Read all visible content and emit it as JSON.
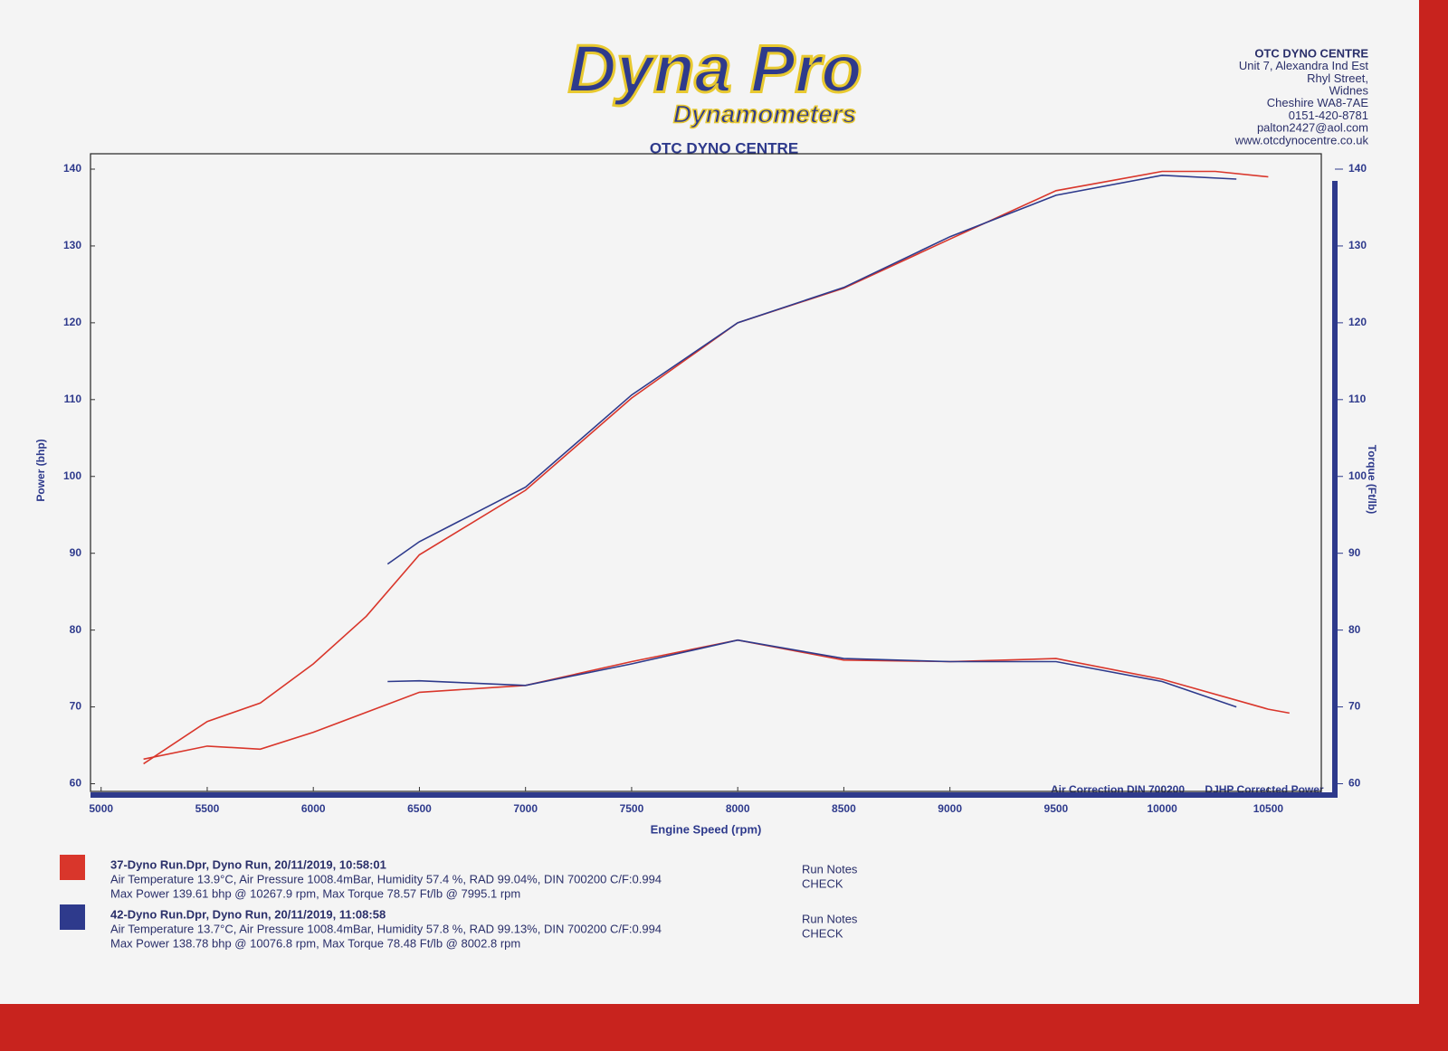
{
  "header": {
    "logo": "Dyna Pro",
    "logo_sub": "Dynamometers",
    "address": [
      "OTC DYNO CENTRE",
      "Unit 7, Alexandra Ind Est",
      "Rhyl Street,",
      "Widnes",
      "Cheshire WA8-7AE",
      "0151-420-8781",
      "palton2427@aol.com",
      "www.otcdynocentre.co.uk"
    ]
  },
  "chart_data": {
    "type": "line",
    "title": "OTC DYNO CENTRE",
    "xlabel": "Engine Speed (rpm)",
    "ylabel": "Power (bhp)",
    "y2label": "Torque (Ft/lb)",
    "xlim": [
      4950,
      10750
    ],
    "xticks": [
      5000,
      5500,
      6000,
      6500,
      7000,
      7500,
      8000,
      8500,
      9000,
      9500,
      10000,
      10500
    ],
    "ylim": [
      59,
      142
    ],
    "yticks": [
      60,
      70,
      80,
      90,
      100,
      110,
      120,
      130,
      140
    ],
    "y2lim": [
      59,
      142
    ],
    "y2ticks": [
      60,
      70,
      80,
      90,
      100,
      110,
      120,
      130,
      140
    ],
    "annotations": [
      "Air Correction DIN 700200",
      "DJHP Corrected Power"
    ],
    "series": [
      {
        "color": "#d9362b",
        "x": [
          5200,
          5500,
          5750,
          6000,
          6250,
          6500,
          7000,
          7500,
          8000,
          8500,
          9000,
          9500,
          10000,
          10250,
          10500
        ],
        "values": [
          62.6,
          68.1,
          70.5,
          75.6,
          81.8,
          89.8,
          98.2,
          110.2,
          120.0,
          124.5,
          130.9,
          137.2,
          139.7,
          139.7,
          139.0
        ]
      },
      {
        "color": "#2e3a8c",
        "x": [
          6350,
          6500,
          7000,
          7500,
          8000,
          8500,
          9000,
          9500,
          10000,
          10350
        ],
        "values": [
          88.6,
          91.5,
          98.6,
          110.6,
          120.0,
          124.6,
          131.2,
          136.6,
          139.2,
          138.7
        ]
      },
      {
        "color": "#d9362b",
        "axis": "y2",
        "x": [
          5200,
          5500,
          5750,
          6000,
          6500,
          7000,
          7500,
          8000,
          8500,
          9000,
          9500,
          10000,
          10500,
          10600
        ],
        "values": [
          63.2,
          64.9,
          64.5,
          66.7,
          71.9,
          72.8,
          75.9,
          78.7,
          76.1,
          75.9,
          76.3,
          73.6,
          69.7,
          69.2
        ]
      },
      {
        "color": "#2e3a8c",
        "axis": "y2",
        "x": [
          6350,
          6500,
          7000,
          7500,
          8000,
          8500,
          9000,
          9500,
          10000,
          10350
        ],
        "values": [
          73.3,
          73.4,
          72.8,
          75.6,
          78.7,
          76.3,
          75.9,
          75.9,
          73.3,
          70.0
        ]
      }
    ],
    "runs": [
      {
        "color": "#d9362b",
        "lines": [
          "37-Dyno Run.Dpr,  Dyno Run,  20/11/2019,  10:58:01",
          "Air Temperature 13.9°C, Air Pressure 1008.4mBar, Humidity 57.4 %, RAD 99.04%,  DIN 700200  C/F:0.994",
          "Max Power 139.61 bhp @ 10267.9 rpm, Max Torque 78.57 Ft/lb @ 7995.1 rpm"
        ],
        "notes": [
          "Run Notes",
          "CHECK"
        ]
      },
      {
        "color": "#2e3a8c",
        "lines": [
          "42-Dyno Run.Dpr,  Dyno Run,  20/11/2019,  11:08:58",
          "Air Temperature 13.7°C, Air Pressure 1008.4mBar, Humidity 57.8 %, RAD 99.13%,  DIN 700200  C/F:0.994",
          "Max Power 138.78 bhp @ 10076.8 rpm, Max Torque 78.48 Ft/lb @ 8002.8 rpm"
        ],
        "notes": [
          "Run Notes",
          "CHECK"
        ]
      }
    ]
  }
}
